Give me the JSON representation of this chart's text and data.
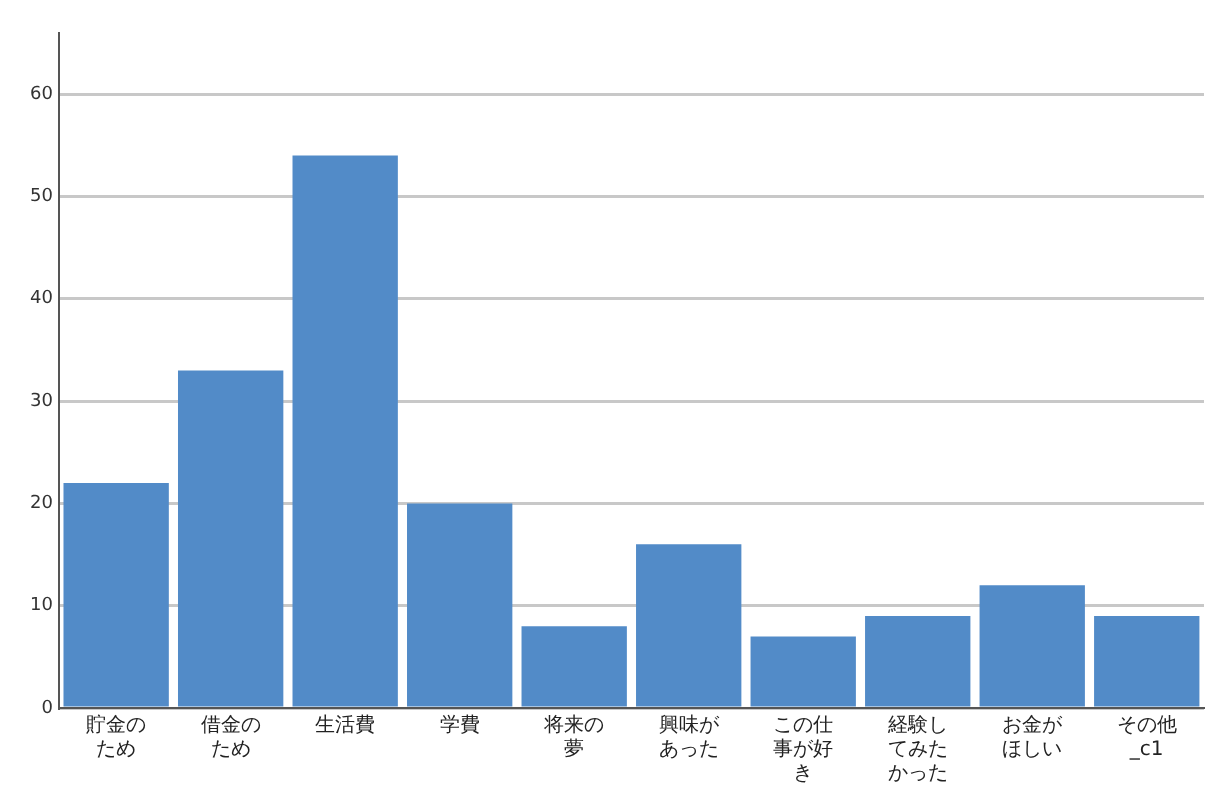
{
  "chart_data": {
    "type": "bar",
    "categories": [
      "貯金のため",
      "借金のため",
      "生活費",
      "学費",
      "将来の夢",
      "興味があった",
      "この仕事が好き",
      "経験してみたかった",
      "お金がほしい",
      "その他_c1"
    ],
    "values": [
      22,
      33,
      54,
      20,
      8,
      16,
      7,
      9,
      12,
      9
    ],
    "color": "#528bc8",
    "ylim": [
      0,
      66
    ],
    "yticks": [
      0,
      10,
      20,
      30,
      40,
      50,
      60
    ],
    "grid": "y",
    "legend": false
  }
}
